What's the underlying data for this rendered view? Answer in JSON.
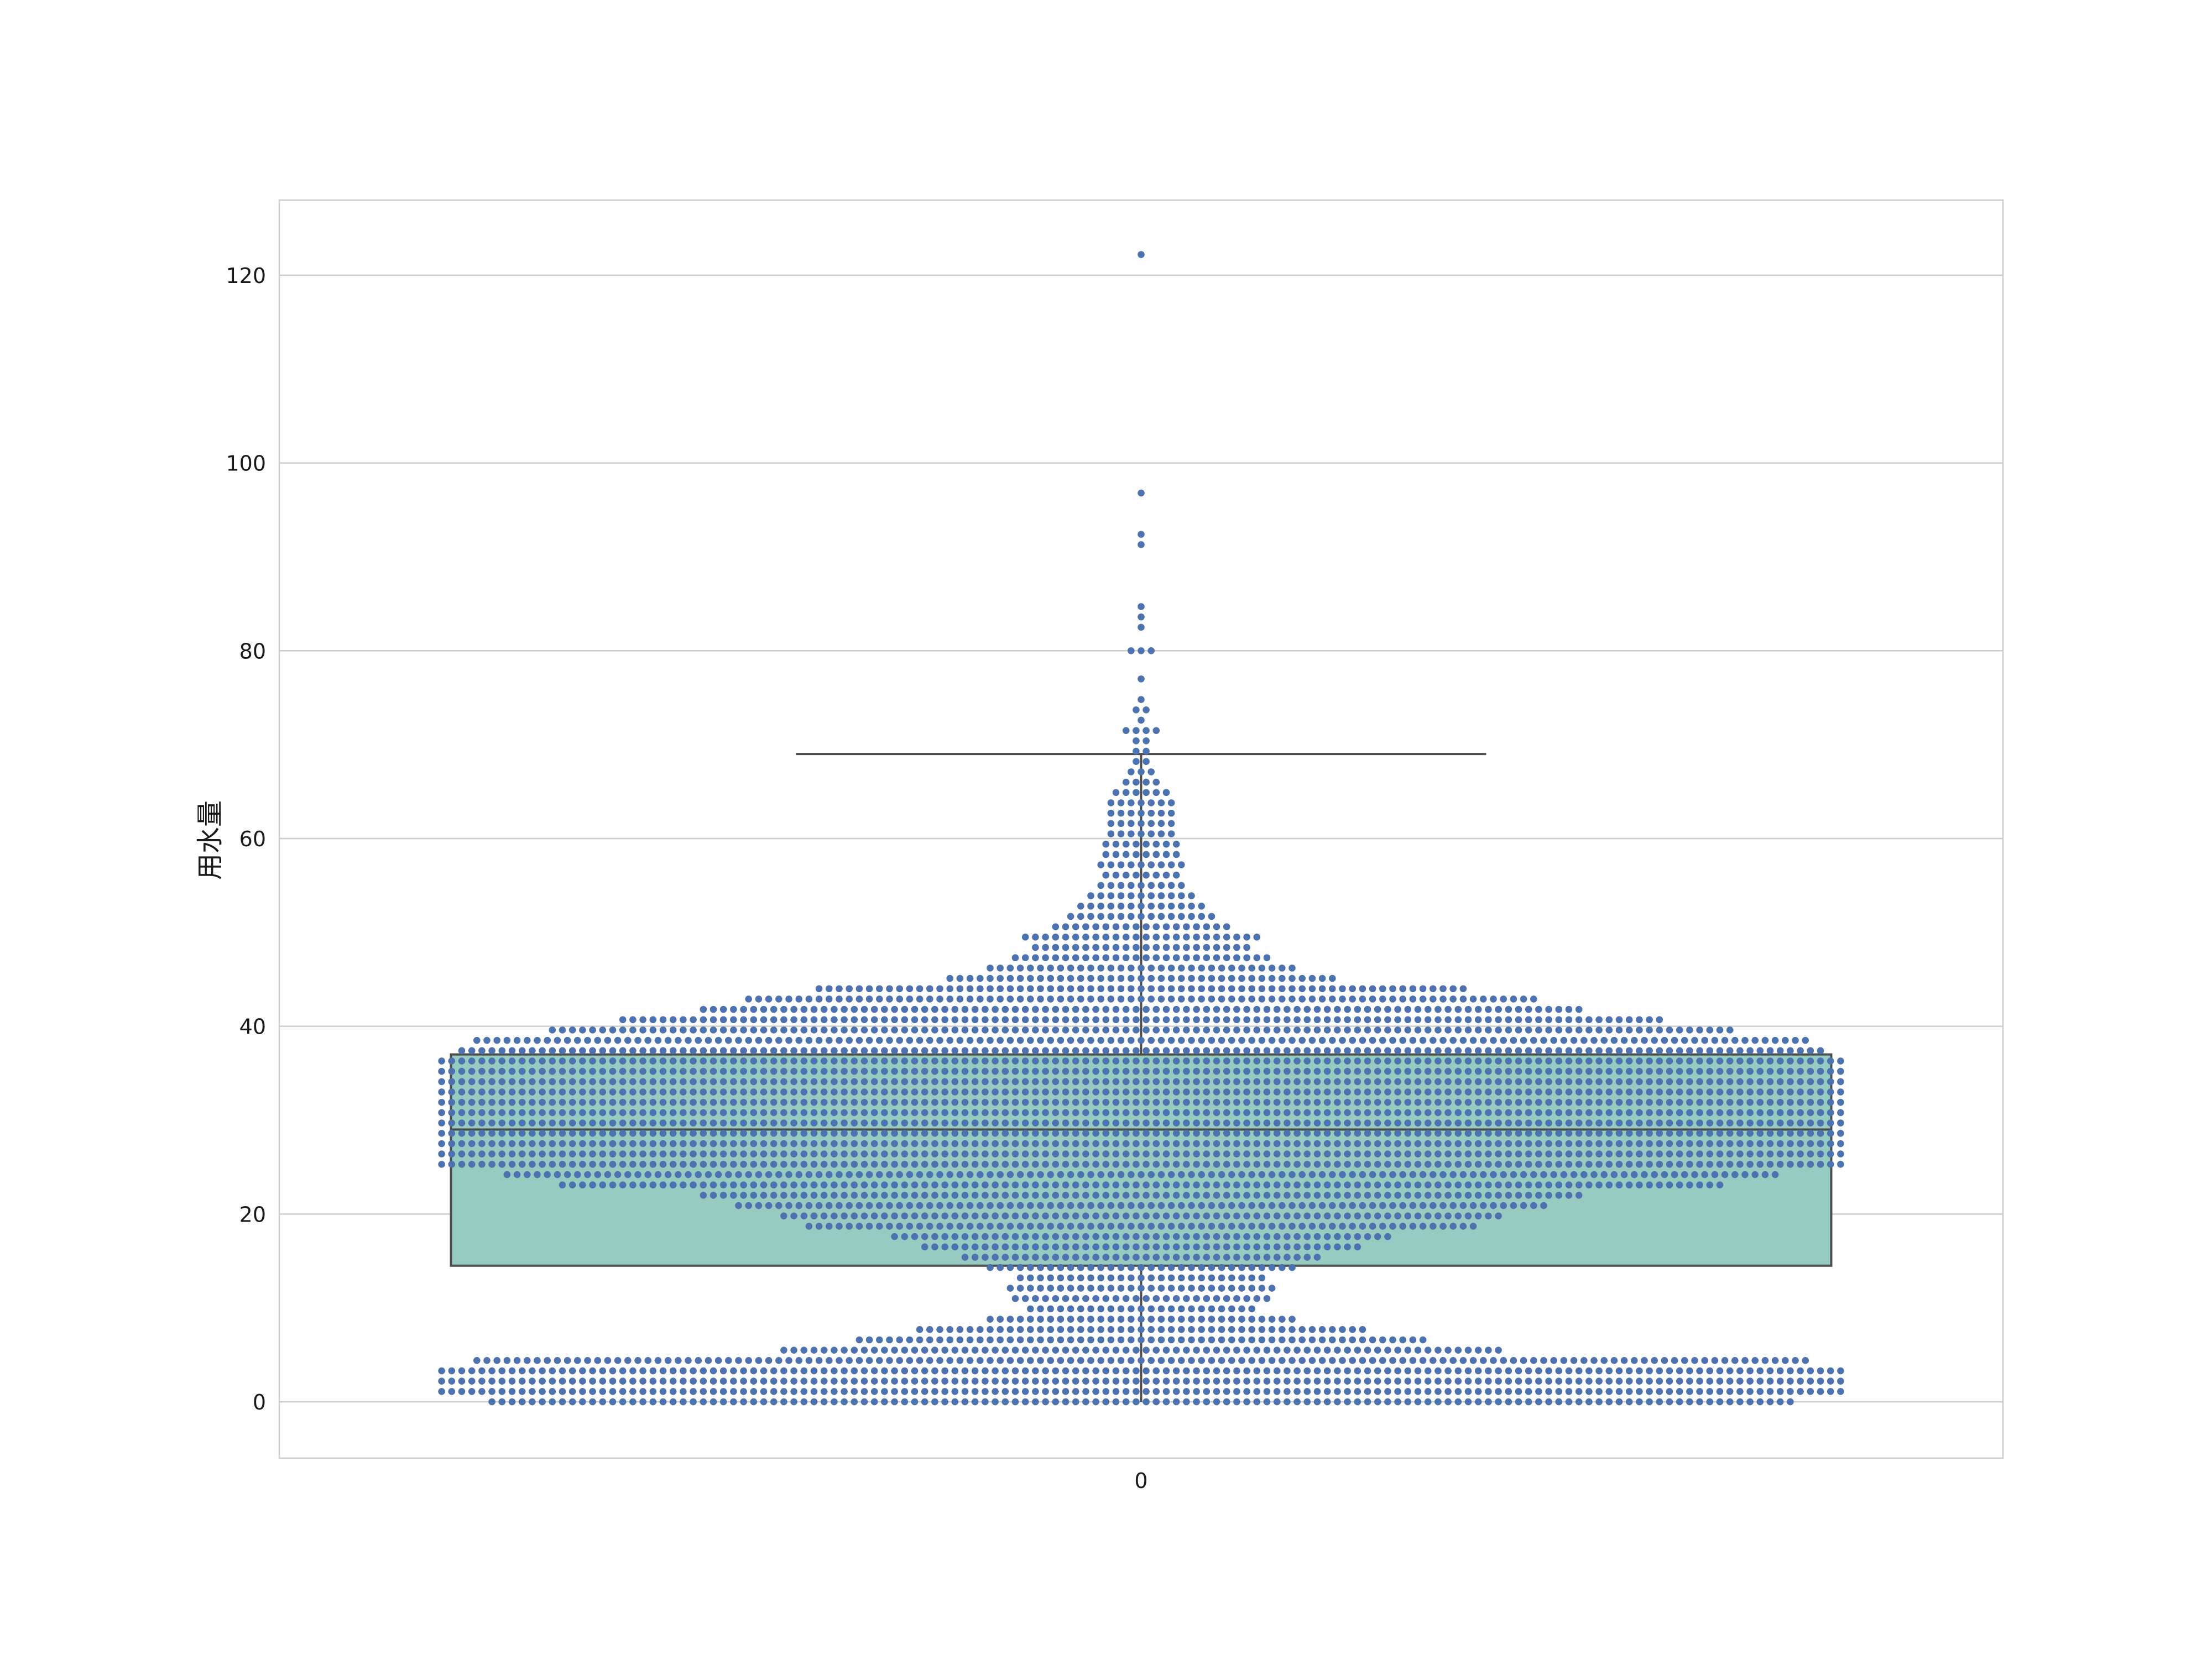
{
  "chart_data": {
    "type": "box+swarm",
    "title": "",
    "xlabel": "",
    "ylabel": "用水量",
    "categories": [
      "0"
    ],
    "ylim": [
      -6,
      128
    ],
    "yticks": [
      0,
      20,
      40,
      60,
      80,
      100,
      120
    ],
    "grid": "horizontal",
    "box": {
      "category": "0",
      "q1": 14.5,
      "median": 29,
      "q3": 37,
      "whisker_low": 0,
      "whisker_high": 69,
      "fill": "#96CBC2",
      "edge": "#4d4d4d"
    },
    "swarm": {
      "category": "0",
      "point_color": "#4c72b0",
      "bin_size": 1.1,
      "counts_by_bin": [
        [
          0.0,
          130
        ],
        [
          1.1,
          140
        ],
        [
          2.2,
          140
        ],
        [
          3.3,
          140
        ],
        [
          4.4,
          133
        ],
        [
          5.5,
          72
        ],
        [
          6.6,
          57
        ],
        [
          7.7,
          45
        ],
        [
          8.8,
          31
        ],
        [
          9.9,
          23
        ],
        [
          11.0,
          26
        ],
        [
          12.1,
          27
        ],
        [
          13.2,
          25
        ],
        [
          14.3,
          31
        ],
        [
          15.4,
          36
        ],
        [
          16.5,
          44
        ],
        [
          17.6,
          50
        ],
        [
          18.7,
          67
        ],
        [
          19.8,
          72
        ],
        [
          20.9,
          81
        ],
        [
          22.0,
          88
        ],
        [
          23.1,
          116
        ],
        [
          24.2,
          127
        ],
        [
          25.3,
          140
        ],
        [
          26.4,
          140
        ],
        [
          27.5,
          140
        ],
        [
          28.6,
          140
        ],
        [
          29.7,
          140
        ],
        [
          30.8,
          140
        ],
        [
          31.9,
          140
        ],
        [
          33.0,
          140
        ],
        [
          34.1,
          140
        ],
        [
          35.2,
          140
        ],
        [
          36.3,
          140
        ],
        [
          37.4,
          136
        ],
        [
          38.5,
          133
        ],
        [
          39.6,
          118
        ],
        [
          40.7,
          104
        ],
        [
          41.8,
          88
        ],
        [
          42.9,
          79
        ],
        [
          44.0,
          65
        ],
        [
          45.1,
          39
        ],
        [
          46.2,
          31
        ],
        [
          47.3,
          26
        ],
        [
          48.4,
          22
        ],
        [
          49.5,
          24
        ],
        [
          50.6,
          18
        ],
        [
          51.7,
          15
        ],
        [
          52.8,
          13
        ],
        [
          53.9,
          11
        ],
        [
          55.0,
          9
        ],
        [
          56.1,
          8
        ],
        [
          57.2,
          9
        ],
        [
          58.3,
          8
        ],
        [
          59.4,
          8
        ],
        [
          60.5,
          7
        ],
        [
          61.6,
          7
        ],
        [
          62.7,
          7
        ],
        [
          63.8,
          7
        ],
        [
          64.9,
          6
        ],
        [
          66.0,
          4
        ],
        [
          67.1,
          3
        ],
        [
          68.2,
          2
        ],
        [
          69.3,
          2
        ],
        [
          70.4,
          2
        ],
        [
          71.5,
          4
        ],
        [
          72.6,
          1
        ],
        [
          73.7,
          2
        ],
        [
          74.8,
          1
        ],
        [
          77.0,
          1
        ],
        [
          80.0,
          3
        ],
        [
          82.5,
          1
        ],
        [
          83.6,
          1
        ],
        [
          84.7,
          1
        ],
        [
          91.3,
          1
        ],
        [
          92.4,
          1
        ],
        [
          96.8,
          1
        ],
        [
          122.2,
          1
        ]
      ]
    }
  }
}
